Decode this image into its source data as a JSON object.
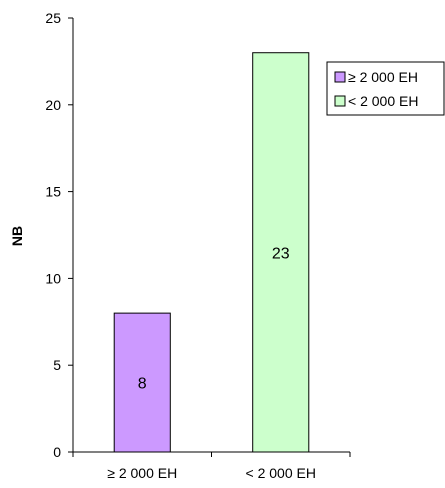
{
  "chart_data": {
    "type": "bar",
    "categories": [
      "≥ 2 000 EH",
      "< 2 000 EH"
    ],
    "values": [
      8,
      23
    ],
    "bar_colors": [
      "#cc99ff",
      "#ccffcc"
    ],
    "data_labels": [
      "8",
      "23"
    ],
    "ylabel": "NB",
    "ylim": [
      0,
      25
    ],
    "yticks": [
      0,
      5,
      10,
      15,
      20,
      25
    ],
    "ytick_labels": [
      "0",
      "5",
      "10",
      "15",
      "20",
      "25"
    ],
    "grid": false,
    "legend": {
      "placement": "top-right",
      "entries": [
        {
          "label": "≥ 2 000 EH",
          "color": "#cc99ff"
        },
        {
          "label": "< 2 000 EH",
          "color": "#ccffcc"
        }
      ]
    }
  }
}
